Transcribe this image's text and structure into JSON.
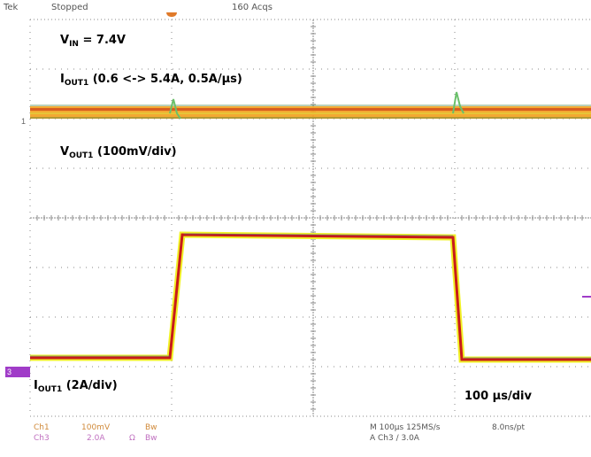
{
  "header": {
    "brand": "Tek",
    "status": "Stopped",
    "acquisitions": "160 Acqs"
  },
  "annotations": {
    "vin_label_main": "V",
    "vin_label_sub": "IN",
    "vin_value": " = 7.4V",
    "iout_top_main": "I",
    "iout_top_sub": "OUT1",
    "iout_top_text": "  (0.6 <-> 5.4A, 0.5A/µs)",
    "vout_main": "V",
    "vout_sub": "OUT1",
    "vout_text": "  (100mV/div)",
    "iout_bottom_main": "I",
    "iout_bottom_sub": "OUT1",
    "iout_bottom_text": "  (2A/div)",
    "timebase": "100 µs/div"
  },
  "markers": {
    "ch1_ref": "1",
    "ch3_ref": "3"
  },
  "footer": {
    "ch1_label": "Ch1",
    "ch1_scale": "100mV",
    "ch1_bw": "Bw",
    "ch3_label": "Ch3",
    "ch3_scale": "2.0A",
    "ch3_ohm": "Ω",
    "ch3_bw": "Bw",
    "timebase_readout": "M 100µs 125MS/s",
    "point_spacing": "8.0ns/pt",
    "trigger_readout": "A  Ch3  ∕  3.0A"
  },
  "colors": {
    "grid": "#8a8a8a",
    "ch1_trace": "#f2a01c",
    "ch1_trace_dark": "#d14a1a",
    "ch3_trace": "#f1f126",
    "ch3_core": "#c81a1a",
    "ch1_text": "#d08a3a",
    "ch3_text": "#c070c0",
    "marker": "#a03cc8"
  }
}
